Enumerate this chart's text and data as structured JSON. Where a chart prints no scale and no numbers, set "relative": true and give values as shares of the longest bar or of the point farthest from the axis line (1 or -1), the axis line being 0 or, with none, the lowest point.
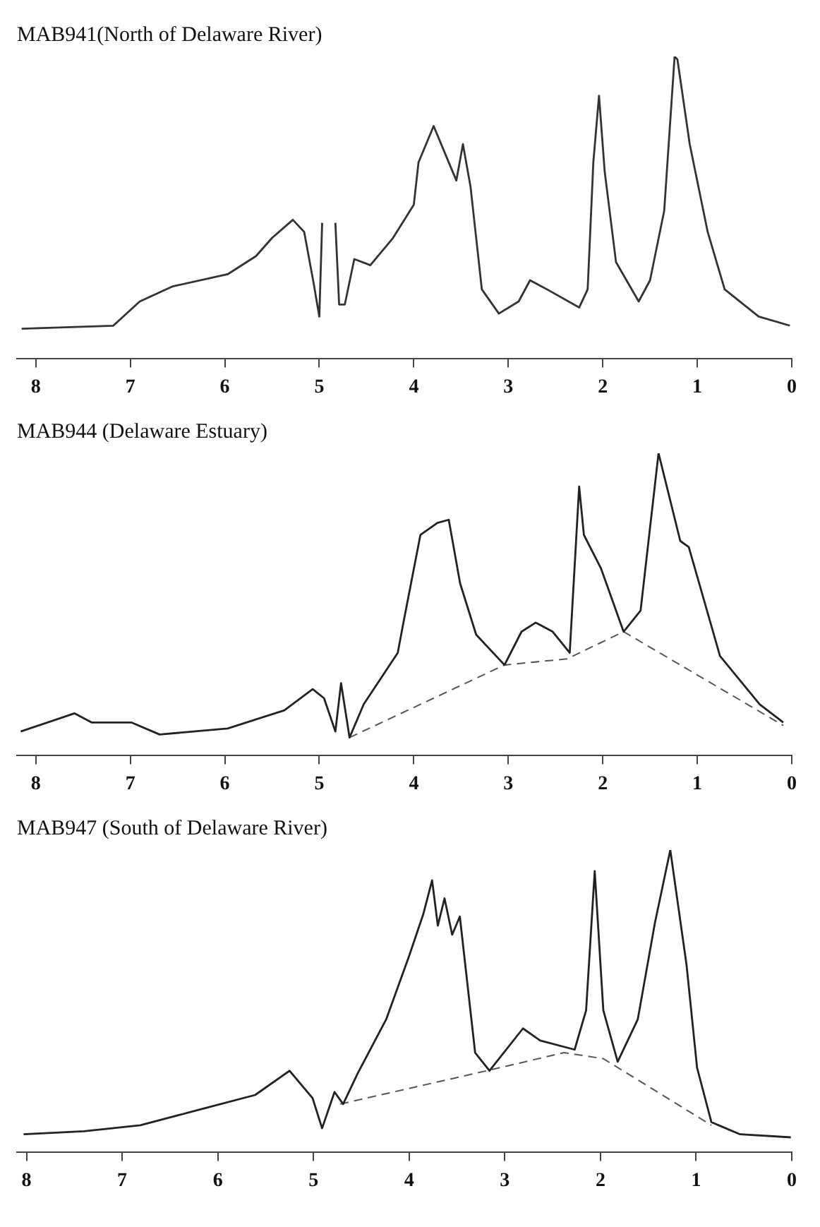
{
  "chart_data": [
    {
      "type": "line",
      "title": "MAB941(North of Delaware River)",
      "relative": true,
      "xlim": [
        8.2,
        0
      ],
      "xticks": [
        8,
        7,
        6,
        5,
        4,
        3,
        2,
        1,
        0
      ],
      "grid": false,
      "legend": false,
      "marker": "none",
      "series": [
        {
          "color": "#333333",
          "line_style": "solid",
          "x": [
            8.15,
            7.18,
            6.9,
            6.55,
            5.97,
            5.67,
            5.5,
            5.28,
            5.16,
            5.06,
            5.0,
            4.97,
            4.9,
            4.83,
            4.79,
            4.73,
            4.63,
            4.46,
            4.22,
            4.0,
            3.95,
            3.79,
            3.67,
            3.55,
            3.48,
            3.4,
            3.28,
            3.1,
            2.89,
            2.77,
            2.59,
            2.25,
            2.16,
            2.1,
            2.04,
            1.98,
            1.86,
            1.62,
            1.5,
            1.35,
            1.24,
            1.21,
            1.08,
            0.89,
            0.71,
            0.35,
            0.02
          ],
          "values": [
            0.1,
            0.11,
            0.19,
            0.24,
            0.28,
            0.34,
            0.4,
            0.46,
            0.42,
            0.25,
            0.14,
            0.45,
            null,
            0.45,
            0.18,
            0.18,
            0.33,
            0.31,
            0.4,
            0.51,
            0.65,
            0.77,
            0.68,
            0.59,
            0.71,
            0.57,
            0.23,
            0.15,
            0.19,
            0.26,
            0.23,
            0.17,
            0.23,
            0.65,
            0.87,
            0.62,
            0.32,
            0.19,
            0.26,
            0.49,
            1.0,
            0.99,
            0.71,
            0.42,
            0.23,
            0.14,
            0.11
          ]
        }
      ]
    },
    {
      "type": "line",
      "title": "MAB944 (Delaware Estuary)",
      "relative": true,
      "xlim": [
        8.2,
        0
      ],
      "xticks": [
        8,
        7,
        6,
        5,
        4,
        3,
        2,
        1,
        0
      ],
      "grid": false,
      "legend": false,
      "marker": "none",
      "series": [
        {
          "color": "#222222",
          "line_style": "solid",
          "x": [
            8.16,
            7.59,
            7.41,
            6.99,
            6.69,
            5.97,
            5.37,
            5.07,
            4.95,
            4.83,
            4.77,
            4.68,
            4.53,
            4.17,
            4.11,
            3.93,
            3.75,
            3.63,
            3.51,
            3.34,
            3.04,
            2.86,
            2.71,
            2.53,
            2.35,
            2.25,
            2.2,
            2.02,
            1.78,
            1.6,
            1.41,
            1.18,
            1.09,
            0.76,
            0.34,
            0.09
          ],
          "values": [
            0.08,
            0.14,
            0.11,
            0.11,
            0.07,
            0.09,
            0.15,
            0.22,
            0.19,
            0.08,
            0.24,
            0.06,
            0.17,
            0.34,
            0.44,
            0.73,
            0.77,
            0.78,
            0.57,
            0.4,
            0.3,
            0.41,
            0.44,
            0.41,
            0.34,
            0.89,
            0.73,
            0.62,
            0.41,
            0.48,
            1.0,
            0.71,
            0.69,
            0.33,
            0.17,
            0.11
          ]
        },
        {
          "color": "#555555",
          "line_style": "dashed",
          "x": [
            4.68,
            3.04,
            2.38,
            1.78,
            0.09
          ],
          "values": [
            0.06,
            0.3,
            0.32,
            0.41,
            0.1
          ]
        }
      ]
    },
    {
      "type": "line",
      "title": "MAB947 (South of Delaware River)",
      "relative": true,
      "xlim": [
        8.1,
        0
      ],
      "xticks": [
        8,
        7,
        6,
        5,
        4,
        3,
        2,
        1,
        0
      ],
      "grid": false,
      "legend": false,
      "marker": "none",
      "series": [
        {
          "color": "#222222",
          "line_style": "solid",
          "x": [
            8.03,
            7.4,
            6.81,
            6.21,
            5.61,
            5.25,
            5.01,
            4.91,
            4.78,
            4.69,
            4.54,
            4.24,
            4.0,
            3.85,
            3.76,
            3.7,
            3.63,
            3.55,
            3.47,
            3.31,
            3.16,
            2.81,
            2.63,
            2.27,
            2.15,
            2.06,
            1.97,
            1.82,
            1.61,
            1.43,
            1.27,
            1.1,
            0.99,
            0.84,
            0.54,
            0.01
          ],
          "values": [
            0.06,
            0.07,
            0.09,
            0.14,
            0.19,
            0.27,
            0.18,
            0.08,
            0.2,
            0.16,
            0.26,
            0.44,
            0.65,
            0.79,
            0.9,
            0.75,
            0.84,
            0.72,
            0.78,
            0.33,
            0.27,
            0.41,
            0.37,
            0.34,
            0.47,
            0.93,
            0.47,
            0.3,
            0.44,
            0.76,
            1.0,
            0.62,
            0.28,
            0.1,
            0.06,
            0.05
          ]
        },
        {
          "color": "#555555",
          "line_style": "dashed",
          "x": [
            4.72,
            3.19,
            2.38,
            1.97,
            0.84
          ],
          "values": [
            0.16,
            0.27,
            0.33,
            0.31,
            0.09
          ]
        }
      ]
    }
  ]
}
